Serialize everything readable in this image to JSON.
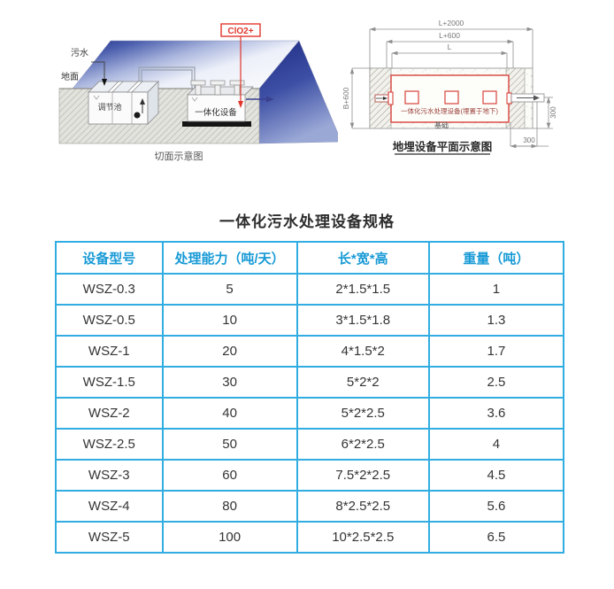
{
  "title": "一体化污水处理设备规格",
  "cross_section_diagram": {
    "clo2_label": "ClO2+",
    "sewage_label": "污水",
    "ground_label": "地面",
    "regulation_tank_label": "调节池",
    "equipment_label": "一体化设备",
    "caption": "切面示意图"
  },
  "plan_diagram": {
    "dim_length_outer": "L+2000",
    "dim_length_mid": "L+600",
    "dim_length_inner": "L",
    "dim_width": "B+600",
    "dim_depth_right": "300",
    "dim_offset_bottom": "300",
    "equipment_label": "一体化污水处理设备(埋置于地下)",
    "foundation_label": "基础",
    "caption": "地埋设备平面示意图"
  },
  "spec_table": {
    "columns": [
      "设备型号",
      "处理能力（吨/天）",
      "长*宽*高",
      "重量（吨）"
    ],
    "rows": [
      [
        "WSZ-0.3",
        "5",
        "2*1.5*1.5",
        "1"
      ],
      [
        "WSZ-0.5",
        "10",
        "3*1.5*1.8",
        "1.3"
      ],
      [
        "WSZ-1",
        "20",
        "4*1.5*2",
        "1.7"
      ],
      [
        "WSZ-1.5",
        "30",
        "5*2*2",
        "2.5"
      ],
      [
        "WSZ-2",
        "40",
        "5*2*2.5",
        "3.6"
      ],
      [
        "WSZ-2.5",
        "50",
        "6*2*2.5",
        "4"
      ],
      [
        "WSZ-3",
        "60",
        "7.5*2*2.5",
        "4.5"
      ],
      [
        "WSZ-4",
        "80",
        "8*2.5*2.5",
        "5.6"
      ],
      [
        "WSZ-5",
        "100",
        "10*2.5*2.5",
        "6.5"
      ]
    ]
  },
  "colors": {
    "table_border": "#31ade2",
    "table_header_text": "#189ad6",
    "accent_red": "#e0362c",
    "gradient_navy": "#222f86"
  }
}
